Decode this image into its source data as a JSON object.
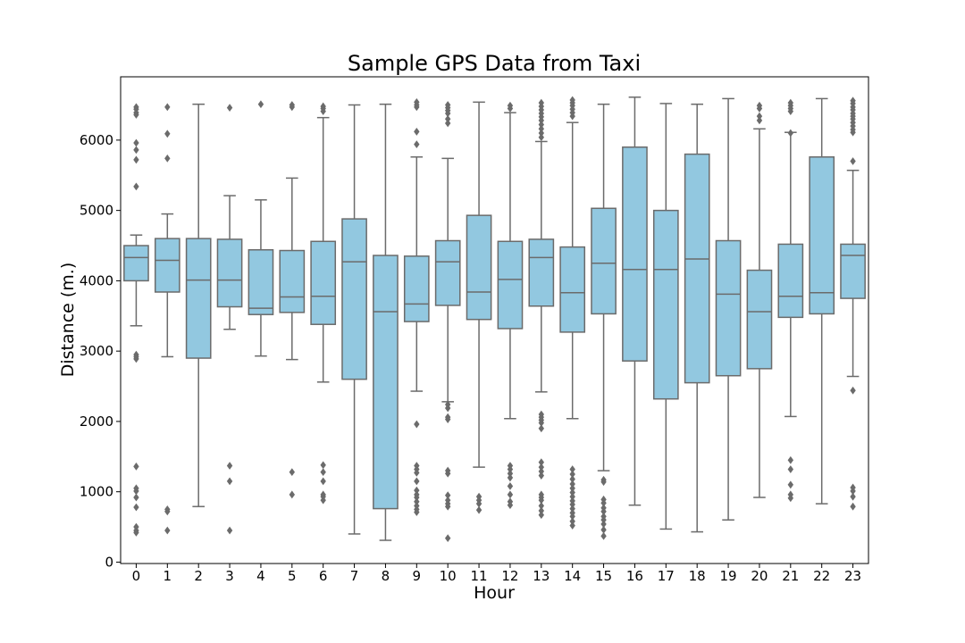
{
  "chart_data": {
    "type": "box",
    "title": "Sample GPS Data from Taxi",
    "xlabel": "Hour",
    "ylabel": "Distance (m.)",
    "ylim": [
      -20,
      6900
    ],
    "yticks": [
      0,
      1000,
      2000,
      3000,
      4000,
      5000,
      6000
    ],
    "grid": false,
    "legend": "none",
    "box_color": "#92c8e0",
    "line_color": "#6b6b6b",
    "categories": [
      "0",
      "1",
      "2",
      "3",
      "4",
      "5",
      "6",
      "7",
      "8",
      "9",
      "10",
      "11",
      "12",
      "13",
      "14",
      "15",
      "16",
      "17",
      "18",
      "19",
      "20",
      "21",
      "22",
      "23"
    ],
    "boxes": [
      {
        "q1": 4000,
        "median": 4330,
        "q3": 4500,
        "whisker_low": 3360,
        "whisker_high": 4650,
        "outliers": [
          6470,
          6440,
          6390,
          6360,
          5960,
          5860,
          5720,
          5340,
          2950,
          2920,
          2890,
          1360,
          1050,
          1010,
          920,
          780,
          500,
          450,
          420
        ]
      },
      {
        "q1": 3840,
        "median": 4290,
        "q3": 4600,
        "whisker_low": 2920,
        "whisker_high": 4950,
        "outliers": [
          6470,
          6090,
          5740,
          750,
          720,
          450
        ]
      },
      {
        "q1": 2900,
        "median": 4010,
        "q3": 4600,
        "whisker_low": 790,
        "whisker_high": 6510,
        "outliers": []
      },
      {
        "q1": 3630,
        "median": 4010,
        "q3": 4590,
        "whisker_low": 3310,
        "whisker_high": 5210,
        "outliers": [
          6460,
          1370,
          1150,
          450
        ]
      },
      {
        "q1": 3520,
        "median": 3610,
        "q3": 4440,
        "whisker_low": 2930,
        "whisker_high": 5150,
        "outliers": [
          6510
        ]
      },
      {
        "q1": 3550,
        "median": 3770,
        "q3": 4430,
        "whisker_low": 2880,
        "whisker_high": 5460,
        "outliers": [
          6500,
          6470,
          1280,
          960
        ]
      },
      {
        "q1": 3380,
        "median": 3780,
        "q3": 4560,
        "whisker_low": 2560,
        "whisker_high": 6320,
        "outliers": [
          6480,
          6450,
          6410,
          1380,
          1280,
          1150,
          960,
          930,
          880
        ]
      },
      {
        "q1": 2600,
        "median": 4270,
        "q3": 4880,
        "whisker_low": 400,
        "whisker_high": 6500,
        "outliers": []
      },
      {
        "q1": 760,
        "median": 3560,
        "q3": 4360,
        "whisker_low": 310,
        "whisker_high": 6510,
        "outliers": []
      },
      {
        "q1": 3420,
        "median": 3670,
        "q3": 4350,
        "whisker_low": 2430,
        "whisker_high": 5760,
        "outliers": [
          6540,
          6500,
          6470,
          6120,
          5940,
          1960,
          1370,
          1320,
          1270,
          1150,
          1020,
          960,
          920,
          860,
          800,
          750,
          710
        ]
      },
      {
        "q1": 3650,
        "median": 4270,
        "q3": 4570,
        "whisker_low": 2280,
        "whisker_high": 5740,
        "outliers": [
          6500,
          6460,
          6420,
          6380,
          6300,
          6240,
          2240,
          2190,
          2060,
          2030,
          1300,
          1260,
          950,
          880,
          830,
          790,
          340
        ]
      },
      {
        "q1": 3450,
        "median": 3840,
        "q3": 4930,
        "whisker_low": 1350,
        "whisker_high": 6540,
        "outliers": [
          930,
          880,
          830,
          740
        ]
      },
      {
        "q1": 3320,
        "median": 4020,
        "q3": 4560,
        "whisker_low": 2040,
        "whisker_high": 6390,
        "outliers": [
          6490,
          6450,
          1370,
          1320,
          1260,
          1200,
          1080,
          960,
          860,
          810
        ]
      },
      {
        "q1": 3640,
        "median": 4330,
        "q3": 4590,
        "whisker_low": 2420,
        "whisker_high": 5980,
        "outliers": [
          6530,
          6480,
          6430,
          6380,
          6330,
          6280,
          6220,
          6160,
          6100,
          6040,
          2100,
          2060,
          2020,
          1980,
          1900,
          1420,
          1350,
          1290,
          1230,
          960,
          920,
          880,
          800,
          730,
          670
        ]
      },
      {
        "q1": 3270,
        "median": 3830,
        "q3": 4480,
        "whisker_low": 2040,
        "whisker_high": 6250,
        "outliers": [
          6570,
          6530,
          6490,
          6440,
          6390,
          6340,
          1320,
          1250,
          1180,
          1110,
          1050,
          990,
          930,
          870,
          820,
          760,
          700,
          650,
          580,
          520
        ]
      },
      {
        "q1": 3530,
        "median": 4250,
        "q3": 5030,
        "whisker_low": 1300,
        "whisker_high": 6510,
        "outliers": [
          1170,
          1140,
          890,
          840,
          770,
          720,
          650,
          600,
          540,
          460,
          370
        ]
      },
      {
        "q1": 2860,
        "median": 4160,
        "q3": 5900,
        "whisker_low": 810,
        "whisker_high": 6610,
        "outliers": []
      },
      {
        "q1": 2320,
        "median": 4160,
        "q3": 5000,
        "whisker_low": 470,
        "whisker_high": 6520,
        "outliers": []
      },
      {
        "q1": 2550,
        "median": 4310,
        "q3": 5800,
        "whisker_low": 430,
        "whisker_high": 6510,
        "outliers": []
      },
      {
        "q1": 2650,
        "median": 3810,
        "q3": 4570,
        "whisker_low": 600,
        "whisker_high": 6590,
        "outliers": []
      },
      {
        "q1": 2750,
        "median": 3560,
        "q3": 4150,
        "whisker_low": 920,
        "whisker_high": 6160,
        "outliers": [
          6490,
          6450,
          6340,
          6280
        ]
      },
      {
        "q1": 3480,
        "median": 3780,
        "q3": 4520,
        "whisker_low": 2070,
        "whisker_high": 6110,
        "outliers": [
          6530,
          6490,
          6450,
          6410,
          6100,
          1450,
          1320,
          1100,
          960,
          910
        ]
      },
      {
        "q1": 3530,
        "median": 3830,
        "q3": 5760,
        "whisker_low": 830,
        "whisker_high": 6590,
        "outliers": []
      },
      {
        "q1": 3750,
        "median": 4360,
        "q3": 4520,
        "whisker_low": 2640,
        "whisker_high": 5570,
        "outliers": [
          6560,
          6520,
          6470,
          6430,
          6380,
          6340,
          6300,
          6250,
          6200,
          6150,
          6110,
          5700,
          2440,
          1060,
          1010,
          930,
          790
        ]
      }
    ]
  }
}
